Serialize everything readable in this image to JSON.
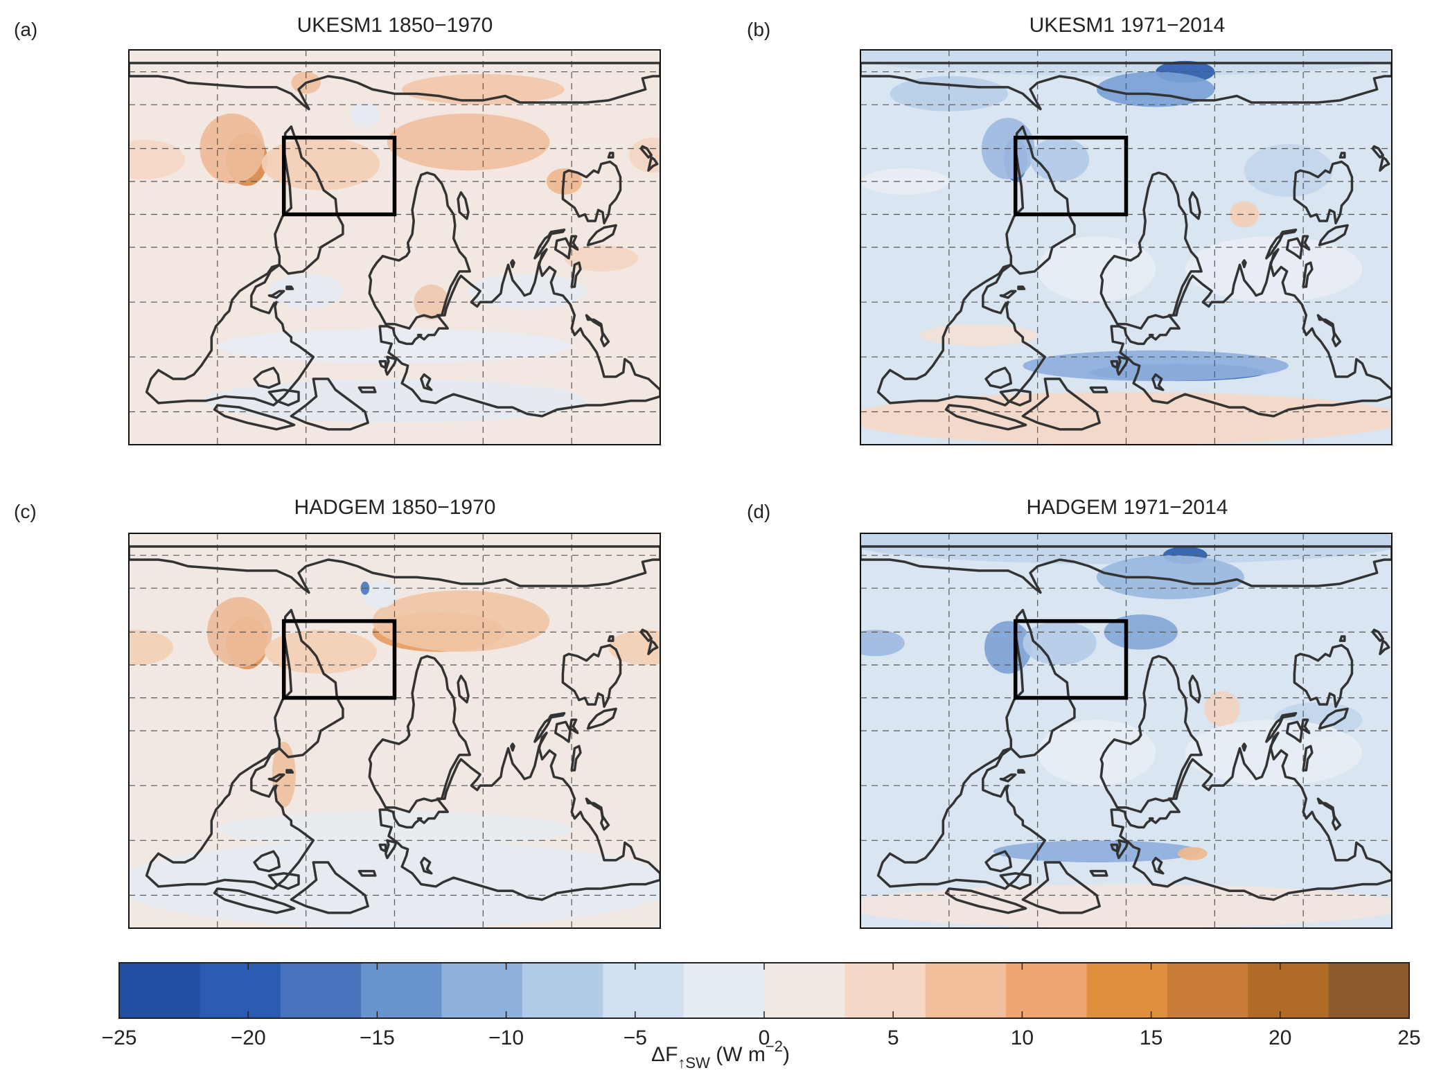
{
  "panels": [
    {
      "label": "(a)",
      "title": "UKESM1 1850−1970",
      "background": "#f2e7e1",
      "blobs": [
        {
          "lon": -100,
          "lat": 40,
          "rx": 14,
          "ry": 12,
          "color": "#d9894a"
        },
        {
          "lon": -110,
          "lat": 45,
          "rx": 22,
          "ry": 16,
          "color": "#eebb98"
        },
        {
          "lon": -50,
          "lat": 38,
          "rx": 40,
          "ry": 12,
          "color": "#f4cfb6"
        },
        {
          "lon": -170,
          "lat": 40,
          "rx": 28,
          "ry": 9,
          "color": "#f4d8c6"
        },
        {
          "lon": 50,
          "lat": 48,
          "rx": 55,
          "ry": 13,
          "color": "#f0c09e"
        },
        {
          "lon": 60,
          "lat": 72,
          "rx": 55,
          "ry": 7,
          "color": "#f2c8ab"
        },
        {
          "lon": -60,
          "lat": 75,
          "rx": 10,
          "ry": 5,
          "color": "#f0c09e"
        },
        {
          "lon": 115,
          "lat": 30,
          "rx": 12,
          "ry": 6,
          "color": "#eeb890"
        },
        {
          "lon": 175,
          "lat": 42,
          "rx": 16,
          "ry": 8,
          "color": "#f4d5c2"
        },
        {
          "lon": 140,
          "lat": -5,
          "rx": 25,
          "ry": 6,
          "color": "#f4d5c2"
        },
        {
          "lon": 25,
          "lat": -25,
          "rx": 12,
          "ry": 8,
          "color": "#f0c8ae"
        },
        {
          "lon": -60,
          "lat": -20,
          "rx": 25,
          "ry": 8,
          "color": "#e6ecf2"
        },
        {
          "lon": 0,
          "lat": -45,
          "rx": 120,
          "ry": 8,
          "color": "#e8edf3"
        },
        {
          "lon": 90,
          "lat": -20,
          "rx": 40,
          "ry": 8,
          "color": "#e6ecf2"
        },
        {
          "lon": 0,
          "lat": -70,
          "rx": 130,
          "ry": 10,
          "color": "#e4eaf1"
        },
        {
          "lon": -20,
          "lat": 60,
          "rx": 10,
          "ry": 6,
          "color": "#e6ecf2"
        }
      ]
    },
    {
      "label": "(b)",
      "title": "UKESM1 1971−2014",
      "background": "#d9e5f1",
      "blobs": [
        {
          "lon": 0,
          "lat": -78,
          "rx": 190,
          "ry": 12,
          "color": "#f4d8c6"
        },
        {
          "lon": 0,
          "lat": 88,
          "rx": 190,
          "ry": 10,
          "color": "#c9dbee"
        },
        {
          "lon": 40,
          "lat": 80,
          "rx": 20,
          "ry": 5,
          "color": "#2e5fae"
        },
        {
          "lon": 20,
          "lat": 72,
          "rx": 40,
          "ry": 8,
          "color": "#7aa1d6"
        },
        {
          "lon": -75,
          "lat": 40,
          "rx": 8,
          "ry": 10,
          "color": "#4d79c0"
        },
        {
          "lon": -80,
          "lat": 45,
          "rx": 18,
          "ry": 14,
          "color": "#9fbbe2"
        },
        {
          "lon": -45,
          "lat": 40,
          "rx": 20,
          "ry": 10,
          "color": "#b2cbe8"
        },
        {
          "lon": 35,
          "lat": -57,
          "rx": 60,
          "ry": 4,
          "color": "#3a69b6"
        },
        {
          "lon": 20,
          "lat": -54,
          "rx": 90,
          "ry": 7,
          "color": "#8eb0dd"
        },
        {
          "lon": 80,
          "lat": 15,
          "rx": 10,
          "ry": 6,
          "color": "#f3cfb6"
        },
        {
          "lon": -120,
          "lat": 70,
          "rx": 40,
          "ry": 8,
          "color": "#b9cfe9"
        },
        {
          "lon": 110,
          "lat": 35,
          "rx": 30,
          "ry": 12,
          "color": "#c3d6ec"
        },
        {
          "lon": -150,
          "lat": 30,
          "rx": 30,
          "ry": 6,
          "color": "#e9eef4"
        },
        {
          "lon": -20,
          "lat": -10,
          "rx": 40,
          "ry": 15,
          "color": "#e8eef5"
        },
        {
          "lon": 100,
          "lat": -10,
          "rx": 60,
          "ry": 15,
          "color": "#e9eef5"
        },
        {
          "lon": -100,
          "lat": -40,
          "rx": 40,
          "ry": 5,
          "color": "#f2e1d7"
        }
      ]
    },
    {
      "label": "(c)",
      "title": "HADGEM 1850−1970",
      "background": "#f2e8e3",
      "blobs": [
        {
          "lon": -100,
          "lat": 40,
          "rx": 14,
          "ry": 12,
          "color": "#dd9458"
        },
        {
          "lon": -105,
          "lat": 45,
          "rx": 22,
          "ry": 16,
          "color": "#eebb98"
        },
        {
          "lon": 30,
          "lat": 45,
          "rx": 45,
          "ry": 9,
          "color": "#e69c62"
        },
        {
          "lon": 45,
          "lat": 50,
          "rx": 60,
          "ry": 14,
          "color": "#f0c5a6"
        },
        {
          "lon": -50,
          "lat": 36,
          "rx": 38,
          "ry": 10,
          "color": "#f4cfb6"
        },
        {
          "lon": -175,
          "lat": 38,
          "rx": 25,
          "ry": 8,
          "color": "#f3cfb6"
        },
        {
          "lon": 170,
          "lat": 38,
          "rx": 25,
          "ry": 8,
          "color": "#f3cfb6"
        },
        {
          "lon": -75,
          "lat": -20,
          "rx": 8,
          "ry": 15,
          "color": "#efc0a0"
        },
        {
          "lon": 0,
          "lat": -70,
          "rx": 190,
          "ry": 20,
          "color": "#e4eaf1"
        },
        {
          "lon": 0,
          "lat": -45,
          "rx": 120,
          "ry": 8,
          "color": "#e6ecf2"
        },
        {
          "lon": -10,
          "lat": 62,
          "rx": 12,
          "ry": 6,
          "color": "#e4eaf1"
        },
        {
          "lon": -20,
          "lat": 65,
          "rx": 3,
          "ry": 3,
          "color": "#4d79c0"
        }
      ]
    },
    {
      "label": "(d)",
      "title": "HADGEM 1971−2014",
      "background": "#d9e5f1",
      "blobs": [
        {
          "lon": 0,
          "lat": -80,
          "rx": 190,
          "ry": 10,
          "color": "#f2e5de"
        },
        {
          "lon": 0,
          "lat": 86,
          "rx": 190,
          "ry": 10,
          "color": "#c1d5ec"
        },
        {
          "lon": 40,
          "lat": 80,
          "rx": 15,
          "ry": 4,
          "color": "#2e5fae"
        },
        {
          "lon": 30,
          "lat": 70,
          "rx": 50,
          "ry": 10,
          "color": "#9ab8e0"
        },
        {
          "lon": -80,
          "lat": 38,
          "rx": 16,
          "ry": 12,
          "color": "#7ea3d6"
        },
        {
          "lon": 10,
          "lat": 45,
          "rx": 25,
          "ry": 8,
          "color": "#86a8d8"
        },
        {
          "lon": -45,
          "lat": 40,
          "rx": 25,
          "ry": 10,
          "color": "#b5cce8"
        },
        {
          "lon": -170,
          "lat": 40,
          "rx": 20,
          "ry": 6,
          "color": "#9fbbe2"
        },
        {
          "lon": -20,
          "lat": -55,
          "rx": 70,
          "ry": 5,
          "color": "#8eb0dd"
        },
        {
          "lon": 45,
          "lat": -56,
          "rx": 10,
          "ry": 3,
          "color": "#f0b88e"
        },
        {
          "lon": 65,
          "lat": 10,
          "rx": 12,
          "ry": 8,
          "color": "#f3d4c0"
        },
        {
          "lon": 130,
          "lat": 5,
          "rx": 30,
          "ry": 8,
          "color": "#c3d6ec"
        },
        {
          "lon": -20,
          "lat": -10,
          "rx": 40,
          "ry": 15,
          "color": "#e8eef5"
        },
        {
          "lon": 100,
          "lat": -10,
          "rx": 60,
          "ry": 15,
          "color": "#e8eef5"
        }
      ]
    }
  ],
  "map": {
    "lon_range": [
      -180,
      180
    ],
    "lat_range": [
      -90,
      90
    ],
    "grid_lons": [
      -120,
      -60,
      0,
      60,
      120
    ],
    "grid_lats": [
      -75,
      -50,
      -25,
      0,
      15,
      30,
      45,
      65,
      80
    ],
    "region": {
      "lon_range": [
        -75,
        0
      ],
      "lat_range": [
        15,
        50
      ]
    }
  },
  "colorbar": {
    "ticks": [
      "−25",
      "−20",
      "−15",
      "−10",
      "−5",
      "0",
      "5",
      "10",
      "15",
      "20",
      "25"
    ],
    "min": -25,
    "max": 25,
    "colors": [
      "#204ea2",
      "#2b5bb3",
      "#4a73bd",
      "#6993cf",
      "#8eb0dd",
      "#b1cbe8",
      "#d0e0f0",
      "#e6ecf3",
      "#f2e8e2",
      "#f5d7c5",
      "#f3bf9a",
      "#f0a670",
      "#e08f3e",
      "#c97c36",
      "#b06b26",
      "#8e5a2e"
    ],
    "label_main": "ΔF",
    "label_sub": "↑SW",
    "label_unit": " (W m",
    "label_exp": "−2",
    "label_close": ")"
  }
}
